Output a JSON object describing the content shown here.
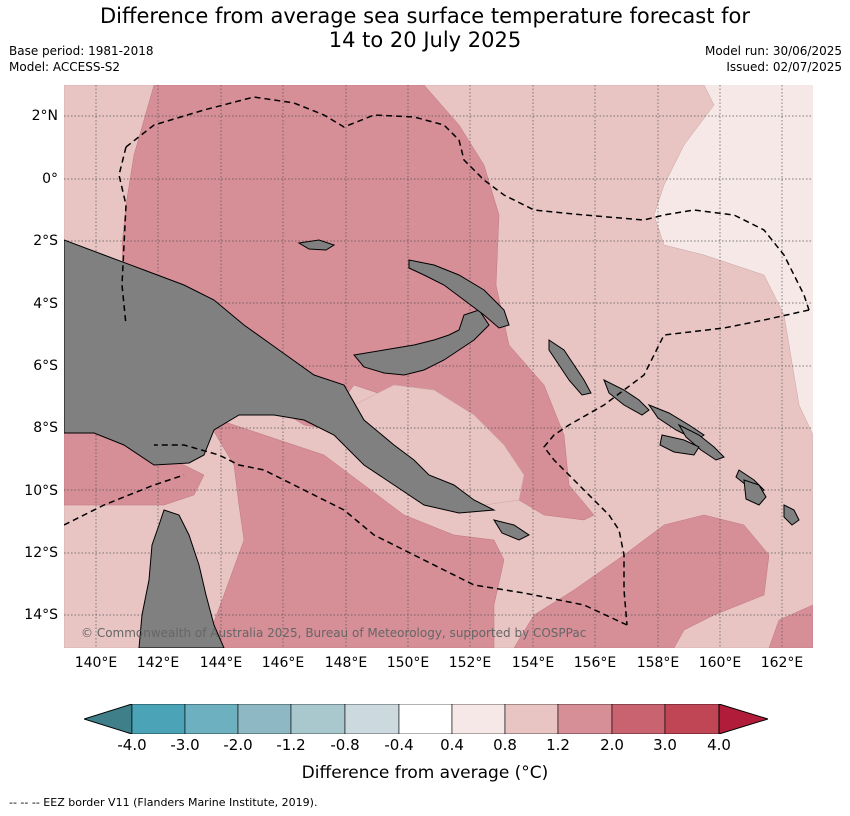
{
  "title": {
    "line1": "Difference from average sea surface temperature forecast for",
    "line2": "14 to 20 July 2025"
  },
  "meta_left": {
    "base_period": "Base period: 1981-2018",
    "model": "Model: ACCESS-S2"
  },
  "meta_right": {
    "model_run": "Model run: 30/06/2025",
    "issued": "Issued: 02/07/2025"
  },
  "map": {
    "lat_labels": [
      "2°N",
      "0°",
      "2°S",
      "4°S",
      "6°S",
      "8°S",
      "10°S",
      "12°S",
      "14°S"
    ],
    "lon_labels": [
      "140°E",
      "142°E",
      "144°E",
      "146°E",
      "148°E",
      "150°E",
      "152°E",
      "154°E",
      "156°E",
      "158°E",
      "160°E",
      "162°E"
    ],
    "copyright": "© Commonwealth of Australia 2025, Bureau of Meteorology, supported by COSPPac",
    "land_color": "#808080",
    "colors": {
      "bin_0_4_0_8": "#f5e8e7",
      "bin_0_8_1_2": "#e8c5c3",
      "bin_1_2_2_0": "#d68e97"
    }
  },
  "colorbar": {
    "ticks": [
      "-4.0",
      "-3.0",
      "-2.0",
      "-1.2",
      "-0.8",
      "-0.4",
      "0.4",
      "0.8",
      "1.2",
      "2.0",
      "3.0",
      "4.0"
    ],
    "colors": [
      "#3e7f8a",
      "#4aa3b6",
      "#6db0c0",
      "#8eb8c3",
      "#a9c8cd",
      "#ccd9df",
      "#ffffff",
      "#f5e8e7",
      "#e8c5c3",
      "#d68e97",
      "#c9636f",
      "#c04555",
      "#b01c3a"
    ],
    "label": "Difference from average (°C)"
  },
  "footnote": "--  --  -- EEZ border V11 (Flanders Marine Institute, 2019)."
}
